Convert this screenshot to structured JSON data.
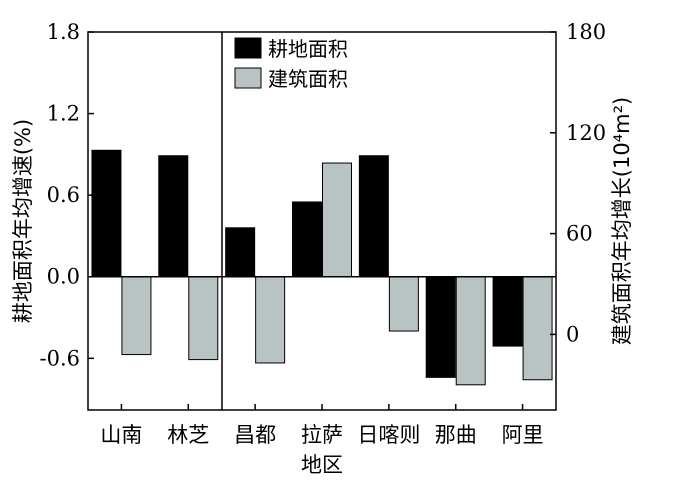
{
  "chart_data": {
    "type": "bar",
    "categories": [
      "山南",
      "林芝",
      "昌都",
      "拉萨",
      "日喀则",
      "那曲",
      "阿里"
    ],
    "xlabel": "地区",
    "ylabel": "耕地面积年均增速(%)",
    "y2label": "建筑面积年均增长(10⁴m²)",
    "ylim": [
      -0.98,
      1.8
    ],
    "y2lim": [
      -45,
      180
    ],
    "yticks": [
      "1.8",
      "1.2",
      "0.6",
      "0.0",
      "-0.6"
    ],
    "y2ticks": [
      "180",
      "120",
      "60",
      "0"
    ],
    "series": [
      {
        "name": "耕地面积",
        "axis": "left",
        "color": "#000000",
        "values": [
          0.93,
          0.89,
          0.36,
          0.55,
          0.89,
          -0.74,
          -0.51
        ]
      },
      {
        "name": "建筑面积",
        "axis": "right",
        "color": "#b9c3c3",
        "values": [
          -12,
          -15,
          -17,
          102,
          2,
          -30,
          -27
        ]
      }
    ],
    "legend_position": "top-center",
    "grid": false
  }
}
